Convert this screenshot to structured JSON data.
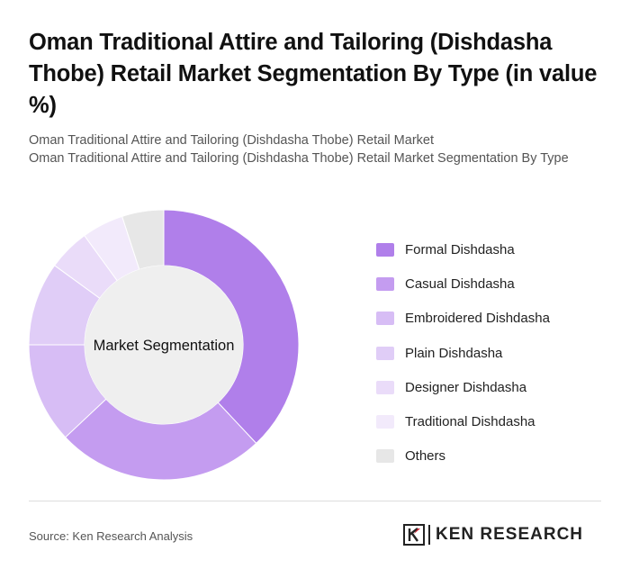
{
  "title": "Oman Traditional Attire and Tailoring (Dishdasha Thobe) Retail Market Segmentation By Type (in value %)",
  "subtitle_line1": "Oman Traditional Attire and Tailoring (Dishdasha Thobe) Retail Market",
  "subtitle_line2": "Oman Traditional Attire and Tailoring (Dishdasha Thobe) Retail Market Segmentation By Type",
  "center_label": "Market Segmentation",
  "source": "Source: Ken Research Analysis",
  "brand": "KEN RESEARCH",
  "chart_data": {
    "type": "pie",
    "donut": true,
    "legend_position": "right",
    "categories": [
      "Formal Dishdasha",
      "Casual Dishdasha",
      "Embroidered Dishdasha",
      "Plain Dishdasha",
      "Designer Dishdasha",
      "Traditional Dishdasha",
      "Others"
    ],
    "values": [
      38,
      25,
      12,
      10,
      5,
      5,
      5
    ],
    "colors": [
      "#b07fea",
      "#c49cf0",
      "#d7bdf5",
      "#e0cdf7",
      "#eadcf9",
      "#f2eafb",
      "#e7e7e7"
    ]
  }
}
